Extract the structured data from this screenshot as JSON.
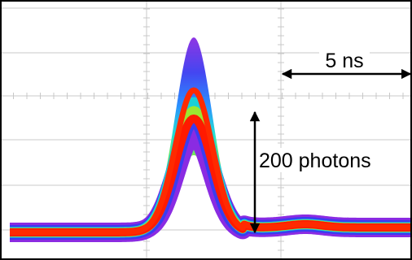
{
  "annotations": {
    "time_scale": "5 ns",
    "amplitude_scale": "200 photons"
  }
}
